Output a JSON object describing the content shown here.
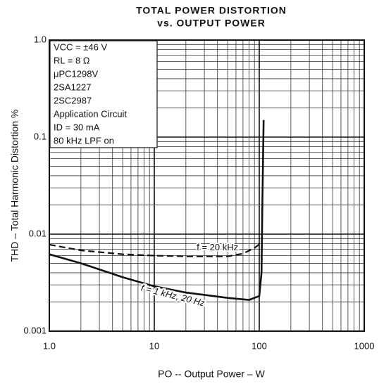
{
  "chart_data": {
    "type": "line",
    "title": "TOTAL POWER DISTORTION",
    "subtitle": "vs. OUTPUT POWER",
    "x_label": "PO -- Output Power – W",
    "y_label": "THD – Total Harmonic Distortion   %",
    "log_x": true,
    "log_y": true,
    "grid": true,
    "xlim": [
      1,
      1000
    ],
    "ylim": [
      0.001,
      1
    ],
    "xticks": [
      {
        "value": 1,
        "label": "1.0"
      },
      10,
      100,
      1000
    ],
    "yticks": [
      {
        "value": 0.001,
        "label": "0.001"
      },
      0.01,
      0.1,
      {
        "value": 1,
        "label": "1.0"
      }
    ],
    "xticks_minor": [
      2,
      3,
      4,
      5,
      6,
      7,
      8,
      9,
      20,
      30,
      40,
      50,
      60,
      70,
      80,
      90,
      200,
      300,
      400,
      500,
      600,
      700,
      800,
      900
    ],
    "yticks_minor": [
      0.002,
      0.003,
      0.004,
      0.005,
      0.006,
      0.007,
      0.008,
      0.009,
      0.02,
      0.03,
      0.04,
      0.05,
      0.06,
      0.07,
      0.08,
      0.09,
      0.2,
      0.3,
      0.4,
      0.5,
      0.6,
      0.7,
      0.8,
      0.9
    ],
    "annotations": [
      "VCC = ±46 V",
      "RL = 8 Ω",
      "μPC1298V",
      "2SA1227",
      "2SC2987",
      "Application Circuit",
      "ID = 30 mA",
      "80 kHz LPF on"
    ],
    "series": [
      {
        "name": "f = 20 kHz",
        "color": "#111111",
        "dashed": true,
        "x": [
          1,
          2,
          5,
          10,
          20,
          50,
          70,
          90,
          105
        ],
        "values": [
          0.0078,
          0.0068,
          0.0062,
          0.006,
          0.0059,
          0.0059,
          0.0063,
          0.0072,
          0.0082
        ]
      },
      {
        "name": "f = 1 kHz, 20 Hz",
        "color": "#111111",
        "dashed": false,
        "x": [
          1,
          2,
          5,
          10,
          20,
          50,
          80,
          100,
          105,
          107,
          110
        ],
        "values": [
          0.0062,
          0.005,
          0.0036,
          0.0029,
          0.0025,
          0.0022,
          0.0021,
          0.0023,
          0.004,
          0.02,
          0.15
        ]
      }
    ]
  }
}
